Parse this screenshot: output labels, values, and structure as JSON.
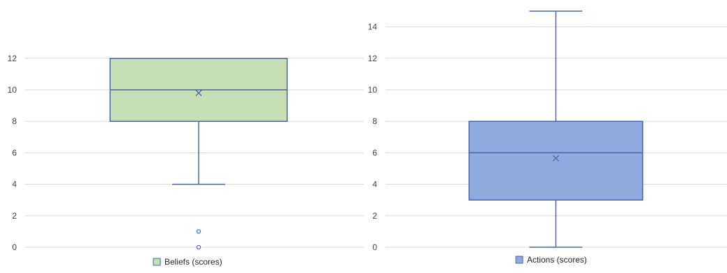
{
  "chart_data": [
    {
      "type": "box",
      "series_name": "Beliefs (scores)",
      "min": 4,
      "q1": 8,
      "median": 10,
      "q3": 12,
      "max": 12,
      "mean": 9.8,
      "outliers": [
        1,
        0
      ],
      "ylim": [
        0,
        12
      ],
      "yticks": [
        0,
        2,
        4,
        6,
        8,
        10,
        12
      ],
      "grid": true,
      "legend": "bottom",
      "fill_color": "#c5e0b4",
      "line_color": "#4a64a8"
    },
    {
      "type": "box",
      "series_name": "Actions (scores)",
      "min": 0,
      "q1": 3,
      "median": 6,
      "q3": 8,
      "max": 15,
      "mean": 5.65,
      "outliers": [],
      "ylim": [
        0,
        14
      ],
      "yticks": [
        0,
        2,
        4,
        6,
        8,
        10,
        12,
        14
      ],
      "grid": true,
      "legend": "bottom",
      "fill_color": "#8faadc",
      "line_color": "#4a64a8"
    }
  ],
  "style": {
    "grid_color": "#d9d9d9",
    "tick_color": "#404040"
  }
}
